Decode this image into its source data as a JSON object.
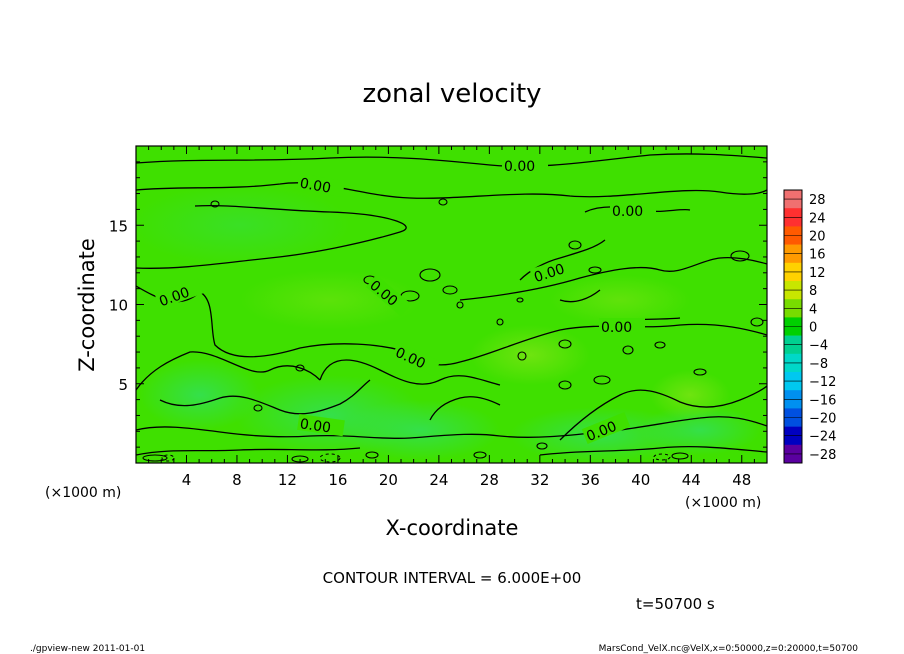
{
  "chart_data": {
    "type": "heatmap",
    "title": "zonal velocity",
    "xlabel": "X-coordinate",
    "ylabel": "Z-coordinate",
    "x_unit": "(×1000 m)",
    "y_unit": "(×1000 m)",
    "xlim": [
      0,
      50
    ],
    "ylim": [
      0,
      20
    ],
    "x_ticks": [
      4,
      8,
      12,
      16,
      20,
      24,
      28,
      32,
      36,
      40,
      44,
      48
    ],
    "y_ticks": [
      5,
      10,
      15
    ],
    "colorbar": {
      "levels": [
        28,
        24,
        20,
        16,
        12,
        8,
        4,
        0,
        -4,
        -8,
        -12,
        -16,
        -20,
        -24,
        -28
      ],
      "labels": [
        "28",
        "24",
        "20",
        "16",
        "12",
        "8",
        "4",
        "0",
        "−20",
        "−24",
        "−28"
      ],
      "all_labels": [
        "28",
        "24",
        "20",
        "16",
        "12",
        "8",
        "4",
        "0",
        "−4",
        "−8",
        "−12",
        "−16",
        "−20",
        "−24",
        "−28"
      ],
      "colors": [
        "#f07070",
        "#ff3030",
        "#ff5a00",
        "#ff9a00",
        "#ffd200",
        "#c8e600",
        "#78dc00",
        "#00d000",
        "#00d090",
        "#00d8c8",
        "#00c8f0",
        "#0090f0",
        "#0050e0",
        "#0000c0",
        "#5a00a0"
      ]
    },
    "contour_labels": [
      "0.00",
      "0.00",
      "0.00",
      "0.00",
      "0.00",
      "0.00",
      "0.00",
      "0.00",
      "0.00",
      "0.00"
    ],
    "contour_interval_text": "CONTOUR INTERVAL = 6.000E+00",
    "time_text": "t=50700 s",
    "field_color": "#3fe000"
  },
  "footer": {
    "left": "./gpview-new   2011-01-01",
    "right": "MarsCond_VelX.nc@VelX,x=0:50000,z=0:20000,t=50700"
  }
}
